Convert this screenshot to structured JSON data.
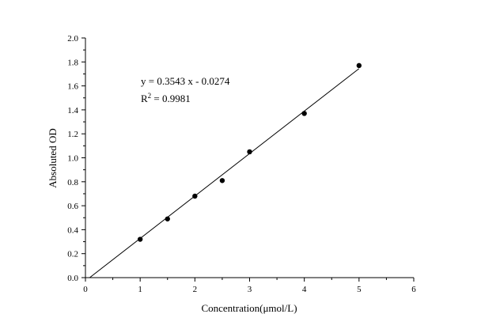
{
  "chart_data": {
    "type": "scatter",
    "title": "",
    "xlabel": "Concentration(μmol/L)",
    "ylabel": "Absoluted OD",
    "xlim": [
      0,
      6
    ],
    "ylim": [
      0,
      2.0
    ],
    "x_ticks": [
      "0",
      "1",
      "2",
      "3",
      "4",
      "5",
      "6"
    ],
    "y_ticks": [
      "0.0",
      "0.2",
      "0.4",
      "0.6",
      "0.8",
      "1.0",
      "1.2",
      "1.4",
      "1.6",
      "1.8",
      "2.0"
    ],
    "grid": false,
    "series": [
      {
        "x": [
          1,
          1.5,
          2,
          2.5,
          3,
          4,
          5
        ],
        "y": [
          0.32,
          0.49,
          0.68,
          0.81,
          1.05,
          1.37,
          1.77
        ]
      }
    ],
    "fit": {
      "slope": 0.3543,
      "intercept": -0.0274,
      "x_range": [
        0,
        5
      ]
    },
    "annotations": {
      "equation": "y = 0.3543 x - 0.0274",
      "r2_label": "R",
      "r2_sup": "2",
      "r2_value": " = 0.9981"
    }
  }
}
